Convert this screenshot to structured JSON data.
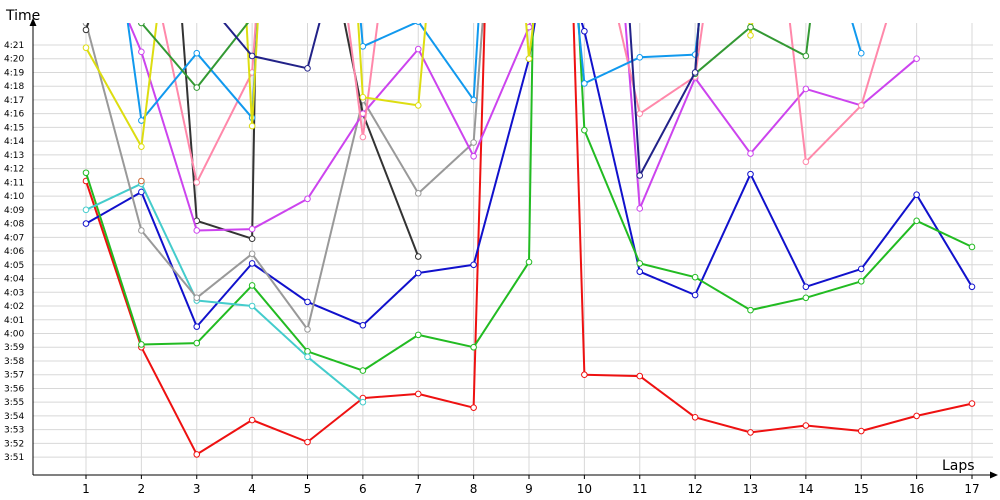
{
  "chart_data": {
    "type": "line",
    "xlabel": "Laps",
    "ylabel": "Time",
    "grid": true,
    "x_categories": [
      1,
      2,
      3,
      4,
      5,
      6,
      7,
      8,
      9,
      10,
      11,
      12,
      13,
      14,
      15,
      16,
      17
    ],
    "y_tick_labels": [
      "3:51",
      "3:52",
      "3:53",
      "3:54",
      "3:55",
      "3:56",
      "3:57",
      "3:58",
      "3:59",
      "4:00",
      "4:01",
      "4:02",
      "4:03",
      "4:04",
      "4:05",
      "4:06",
      "4:07",
      "4:08",
      "4:09",
      "4:10",
      "4:11",
      "4:12",
      "4:13",
      "4:14",
      "4:15",
      "4:16",
      "4:17",
      "4:18",
      "4:19",
      "4:20",
      "4:21"
    ],
    "y_range_seconds": [
      229.7,
      262.6
    ],
    "y_ticks_start_seconds": 231,
    "y_ticks_step_seconds": 1,
    "series": [
      {
        "color": "#ee1111",
        "points": [
          [
            1,
            251.1
          ],
          [
            2,
            239.0
          ],
          [
            3,
            231.2
          ],
          [
            4,
            233.7
          ],
          [
            5,
            232.1
          ],
          [
            6,
            235.3
          ],
          [
            7,
            235.6
          ],
          [
            8,
            234.6
          ],
          [
            8.25,
            270
          ],
          [
            9.75,
            270
          ],
          [
            10,
            237.0
          ],
          [
            11,
            236.9
          ],
          [
            12,
            233.9
          ],
          [
            13,
            232.8
          ],
          [
            14,
            233.3
          ],
          [
            15,
            232.9
          ],
          [
            16,
            234.0
          ],
          [
            17,
            234.9
          ]
        ]
      },
      {
        "color": "#1111cc",
        "points": [
          [
            1,
            248.0
          ],
          [
            2,
            250.3
          ],
          [
            3,
            240.5
          ],
          [
            4,
            245.1
          ],
          [
            5,
            242.3
          ],
          [
            6,
            240.6
          ],
          [
            7,
            244.4
          ],
          [
            8,
            245.0
          ],
          [
            9,
            260.0
          ],
          [
            9.4,
            270
          ],
          [
            10,
            262.0
          ],
          [
            11,
            244.5
          ],
          [
            12,
            242.8
          ],
          [
            13,
            251.6
          ],
          [
            14,
            243.4
          ],
          [
            15,
            244.7
          ],
          [
            16,
            250.1
          ],
          [
            17,
            243.4
          ]
        ]
      },
      {
        "color": "#22bb22",
        "points": [
          [
            1,
            251.7
          ],
          [
            2,
            239.2
          ],
          [
            3,
            239.3
          ],
          [
            4,
            243.5
          ],
          [
            5,
            238.7
          ],
          [
            6,
            237.3
          ],
          [
            7,
            239.9
          ],
          [
            8,
            239.0
          ],
          [
            9,
            245.2
          ],
          [
            9.1,
            270
          ],
          [
            9.8,
            270
          ],
          [
            10,
            254.8
          ],
          [
            11,
            245.1
          ],
          [
            12,
            244.1
          ],
          [
            13,
            241.7
          ],
          [
            14,
            242.6
          ],
          [
            15,
            243.8
          ],
          [
            16,
            248.2
          ],
          [
            17,
            246.3
          ]
        ]
      },
      {
        "color": "#44cccc",
        "points": [
          [
            1,
            249.0
          ],
          [
            2,
            250.9
          ],
          [
            3,
            242.4
          ],
          [
            4,
            242.0
          ],
          [
            5,
            238.3
          ],
          [
            6,
            235.0
          ]
        ]
      },
      {
        "color": "#999999",
        "points": [
          [
            1,
            262.6
          ],
          [
            2,
            247.5
          ],
          [
            3,
            242.6
          ],
          [
            4,
            245.8
          ],
          [
            5,
            240.3
          ],
          [
            6,
            257.0
          ],
          [
            7,
            250.2
          ],
          [
            8,
            253.9
          ],
          [
            8.3,
            270
          ]
        ]
      },
      {
        "color": "#333333",
        "points": [
          [
            1,
            262.1
          ],
          [
            1.6,
            270
          ],
          [
            2.6,
            270
          ],
          [
            3,
            248.2
          ],
          [
            4,
            246.9
          ],
          [
            4.1,
            270
          ],
          [
            5.3,
            270
          ],
          [
            6,
            256.0
          ],
          [
            7,
            245.6
          ]
        ]
      },
      {
        "color": "#cc44ee",
        "points": [
          [
            1,
            270
          ],
          [
            2,
            260.5
          ],
          [
            3,
            247.5
          ],
          [
            4,
            247.6
          ],
          [
            5,
            249.8
          ],
          [
            6,
            256.0
          ],
          [
            7,
            260.7
          ],
          [
            8,
            252.9
          ],
          [
            9,
            262.3
          ],
          [
            9.5,
            270
          ],
          [
            10.6,
            270
          ],
          [
            11,
            249.1
          ],
          [
            12,
            258.6
          ],
          [
            13,
            253.1
          ],
          [
            14,
            257.8
          ],
          [
            15,
            256.6
          ],
          [
            16,
            260.0
          ]
        ]
      },
      {
        "color": "#ff88aa",
        "points": [
          [
            1,
            270
          ],
          [
            2,
            270
          ],
          [
            3,
            251.0
          ],
          [
            4,
            259.0
          ],
          [
            4.2,
            270
          ],
          [
            5.5,
            270
          ],
          [
            6,
            254.3
          ],
          [
            6.5,
            270
          ],
          [
            10.2,
            270
          ],
          [
            11,
            256.0
          ],
          [
            12,
            258.7
          ],
          [
            12.4,
            270
          ],
          [
            13.5,
            270
          ],
          [
            14,
            252.5
          ],
          [
            15,
            256.6
          ],
          [
            16,
            270
          ]
        ]
      },
      {
        "color": "#1199ee",
        "points": [
          [
            1.5,
            270
          ],
          [
            2,
            255.5
          ],
          [
            3,
            260.4
          ],
          [
            4,
            255.7
          ],
          [
            4.2,
            270
          ],
          [
            5.8,
            270
          ],
          [
            6,
            260.9
          ],
          [
            7,
            262.7
          ],
          [
            8,
            257.0
          ],
          [
            8.2,
            270
          ],
          [
            9.7,
            270
          ],
          [
            10,
            258.2
          ],
          [
            11,
            260.1
          ],
          [
            12,
            260.3
          ],
          [
            12.3,
            270
          ],
          [
            14.3,
            270
          ],
          [
            15,
            260.4
          ]
        ]
      },
      {
        "color": "#dddd11",
        "points": [
          [
            1,
            260.8
          ],
          [
            2,
            253.6
          ],
          [
            2.5,
            270
          ],
          [
            3.8,
            270
          ],
          [
            4,
            255.1
          ],
          [
            4.2,
            270
          ],
          [
            5.8,
            270
          ],
          [
            6,
            257.2
          ],
          [
            7,
            256.6
          ],
          [
            7.3,
            270
          ],
          [
            8.8,
            270
          ],
          [
            9,
            260.0
          ],
          [
            9.3,
            270
          ],
          [
            12.8,
            270
          ],
          [
            13,
            261.7
          ],
          [
            13.3,
            270
          ]
        ]
      },
      {
        "color": "#339933",
        "points": [
          [
            1,
            270
          ],
          [
            2,
            262.6
          ],
          [
            3,
            257.9
          ],
          [
            4,
            263.0
          ],
          [
            4.1,
            270
          ],
          [
            12.2,
            270
          ],
          [
            12,
            258.9
          ],
          [
            13,
            262.3
          ],
          [
            14,
            260.2
          ],
          [
            14.3,
            270
          ]
        ]
      },
      {
        "color": "#222288",
        "points": [
          [
            2,
            270
          ],
          [
            3,
            265.0
          ],
          [
            4,
            260.2
          ],
          [
            5,
            259.3
          ],
          [
            5.7,
            270
          ],
          [
            9.7,
            270
          ],
          [
            10,
            264.0
          ],
          [
            10.5,
            270
          ],
          [
            10.7,
            270
          ],
          [
            11,
            251.5
          ],
          [
            12,
            259.0
          ],
          [
            12.2,
            270
          ]
        ]
      },
      {
        "color": "#cc6633",
        "points": [
          [
            2,
            251.1
          ]
        ]
      }
    ]
  }
}
